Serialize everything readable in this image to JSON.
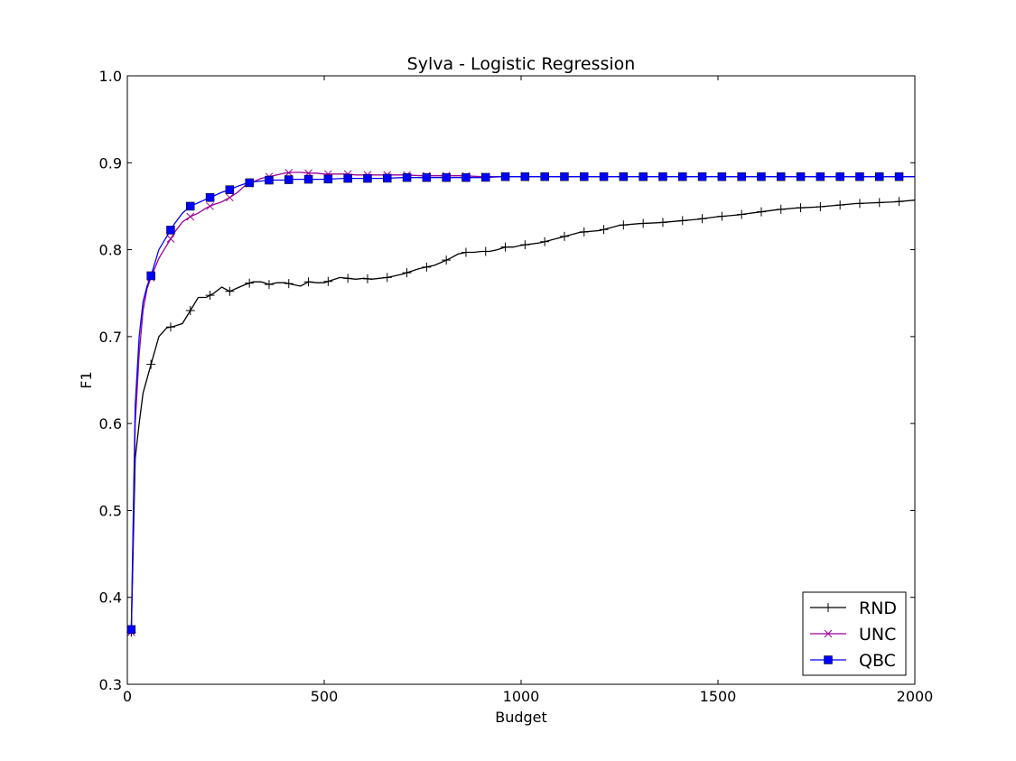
{
  "chart_data": {
    "type": "line",
    "title": "Sylva - Logistic Regression",
    "xlabel": "Budget",
    "ylabel": "F1",
    "xlim": [
      0,
      2000
    ],
    "ylim": [
      0.3,
      1.0
    ],
    "xticks": [
      0,
      500,
      1000,
      1500,
      2000
    ],
    "yticks": [
      0.3,
      0.4,
      0.5,
      0.6,
      0.7,
      0.8,
      0.9,
      1.0
    ],
    "xtick_labels": [
      "0",
      "500",
      "1000",
      "1500",
      "2000"
    ],
    "ytick_labels": [
      "0.3",
      "0.4",
      "0.5",
      "0.6",
      "0.7",
      "0.8",
      "0.9",
      "1.0"
    ],
    "grid": false,
    "legend_position": "bottom-right",
    "series": [
      {
        "name": "RND",
        "color": "#000000",
        "marker": "plus",
        "x": [
          10,
          20,
          30,
          40,
          60,
          80,
          100,
          120,
          140,
          160,
          180,
          200,
          220,
          240,
          260,
          280,
          300,
          320,
          340,
          360,
          380,
          400,
          420,
          440,
          460,
          480,
          500,
          520,
          540,
          560,
          580,
          600,
          620,
          640,
          660,
          680,
          700,
          720,
          740,
          760,
          780,
          800,
          820,
          840,
          860,
          880,
          900,
          920,
          940,
          960,
          980,
          1000,
          1050,
          1100,
          1150,
          1200,
          1250,
          1300,
          1350,
          1400,
          1450,
          1500,
          1550,
          1600,
          1650,
          1700,
          1750,
          1800,
          1850,
          1900,
          1950,
          2000
        ],
        "y": [
          0.36,
          0.56,
          0.6,
          0.635,
          0.668,
          0.7,
          0.71,
          0.712,
          0.715,
          0.73,
          0.745,
          0.745,
          0.75,
          0.757,
          0.752,
          0.756,
          0.76,
          0.763,
          0.763,
          0.76,
          0.762,
          0.762,
          0.76,
          0.758,
          0.763,
          0.762,
          0.762,
          0.765,
          0.768,
          0.767,
          0.766,
          0.767,
          0.766,
          0.767,
          0.768,
          0.77,
          0.772,
          0.775,
          0.778,
          0.78,
          0.782,
          0.786,
          0.79,
          0.795,
          0.797,
          0.797,
          0.798,
          0.798,
          0.8,
          0.803,
          0.803,
          0.805,
          0.808,
          0.814,
          0.82,
          0.822,
          0.828,
          0.83,
          0.831,
          0.833,
          0.835,
          0.838,
          0.84,
          0.843,
          0.846,
          0.848,
          0.849,
          0.851,
          0.853,
          0.854,
          0.855,
          0.857
        ]
      },
      {
        "name": "UNC",
        "color": "#990099",
        "marker": "x",
        "x": [
          10,
          20,
          30,
          40,
          50,
          60,
          80,
          100,
          120,
          140,
          160,
          180,
          200,
          220,
          240,
          260,
          280,
          300,
          320,
          340,
          360,
          380,
          400,
          420,
          440,
          460,
          480,
          500,
          520,
          540,
          560,
          580,
          600,
          650,
          700,
          750,
          800,
          850,
          900,
          950,
          1000,
          1100,
          1200,
          1300,
          1400,
          1500,
          1600,
          1700,
          1800,
          1900,
          2000
        ],
        "y": [
          0.36,
          0.6,
          0.68,
          0.73,
          0.755,
          0.768,
          0.79,
          0.805,
          0.82,
          0.832,
          0.838,
          0.842,
          0.848,
          0.852,
          0.855,
          0.86,
          0.866,
          0.874,
          0.878,
          0.882,
          0.884,
          0.886,
          0.888,
          0.889,
          0.889,
          0.888,
          0.888,
          0.887,
          0.887,
          0.887,
          0.887,
          0.886,
          0.886,
          0.886,
          0.886,
          0.885,
          0.885,
          0.885,
          0.884,
          0.884,
          0.884,
          0.884,
          0.884,
          0.884,
          0.884,
          0.884,
          0.884,
          0.884,
          0.884,
          0.884,
          0.884
        ]
      },
      {
        "name": "QBC",
        "color": "#0000ff",
        "marker": "square",
        "x": [
          10,
          20,
          30,
          40,
          50,
          60,
          80,
          100,
          120,
          140,
          160,
          180,
          200,
          220,
          240,
          260,
          280,
          300,
          320,
          340,
          360,
          380,
          400,
          420,
          440,
          460,
          480,
          500,
          550,
          600,
          650,
          700,
          750,
          800,
          850,
          900,
          950,
          1000,
          1100,
          1200,
          1300,
          1400,
          1500,
          1600,
          1700,
          1800,
          1900,
          2000
        ],
        "y": [
          0.363,
          0.62,
          0.7,
          0.74,
          0.758,
          0.77,
          0.8,
          0.815,
          0.83,
          0.842,
          0.85,
          0.854,
          0.858,
          0.862,
          0.866,
          0.869,
          0.873,
          0.876,
          0.878,
          0.879,
          0.88,
          0.88,
          0.88,
          0.881,
          0.881,
          0.881,
          0.881,
          0.881,
          0.882,
          0.882,
          0.882,
          0.883,
          0.883,
          0.883,
          0.883,
          0.883,
          0.884,
          0.884,
          0.884,
          0.884,
          0.884,
          0.884,
          0.884,
          0.884,
          0.884,
          0.884,
          0.884,
          0.884
        ]
      }
    ]
  }
}
